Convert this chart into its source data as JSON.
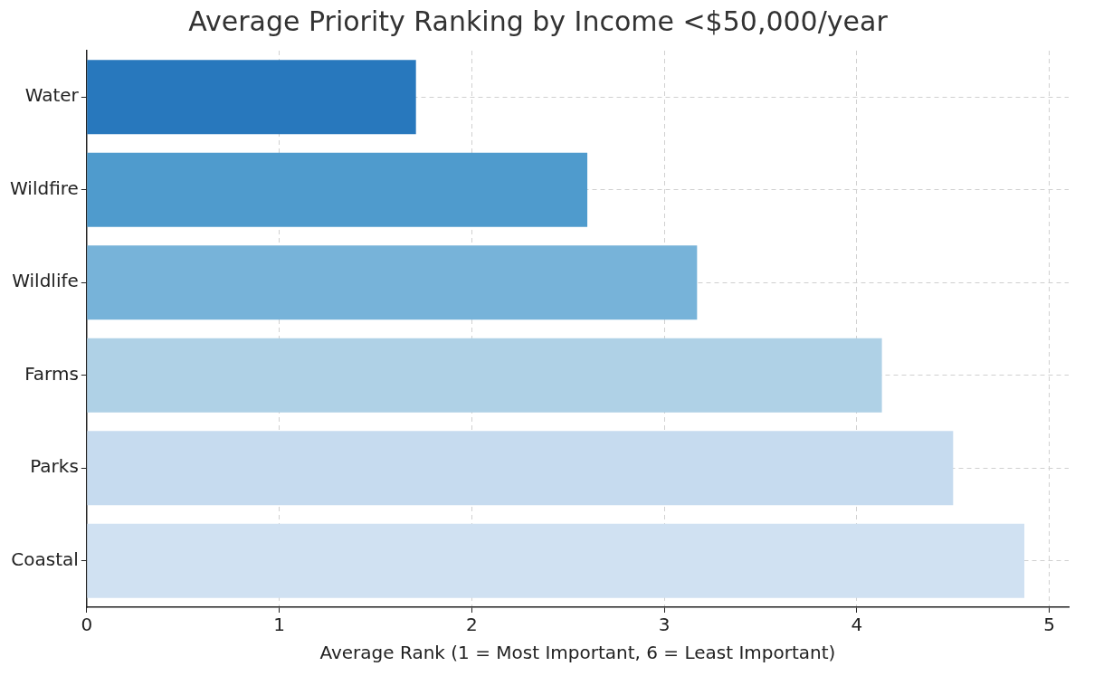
{
  "chart_data": {
    "type": "bar",
    "orientation": "horizontal",
    "title": "Average Priority Ranking by Income <$50,000/year",
    "xlabel": "Average Rank (1 = Most Important, 6 = Least Important)",
    "categories": [
      "Water",
      "Wildfire",
      "Wildlife",
      "Farms",
      "Parks",
      "Coastal"
    ],
    "values": [
      1.71,
      2.6,
      3.17,
      4.13,
      4.5,
      4.87
    ],
    "colors": [
      "#2878bd",
      "#4f9bcd",
      "#77b3d9",
      "#afd1e6",
      "#c6dbef",
      "#d0e1f2"
    ],
    "xlim": [
      0,
      5.1
    ],
    "xticks": [
      0,
      1,
      2,
      3,
      4,
      5
    ],
    "grid": true
  }
}
